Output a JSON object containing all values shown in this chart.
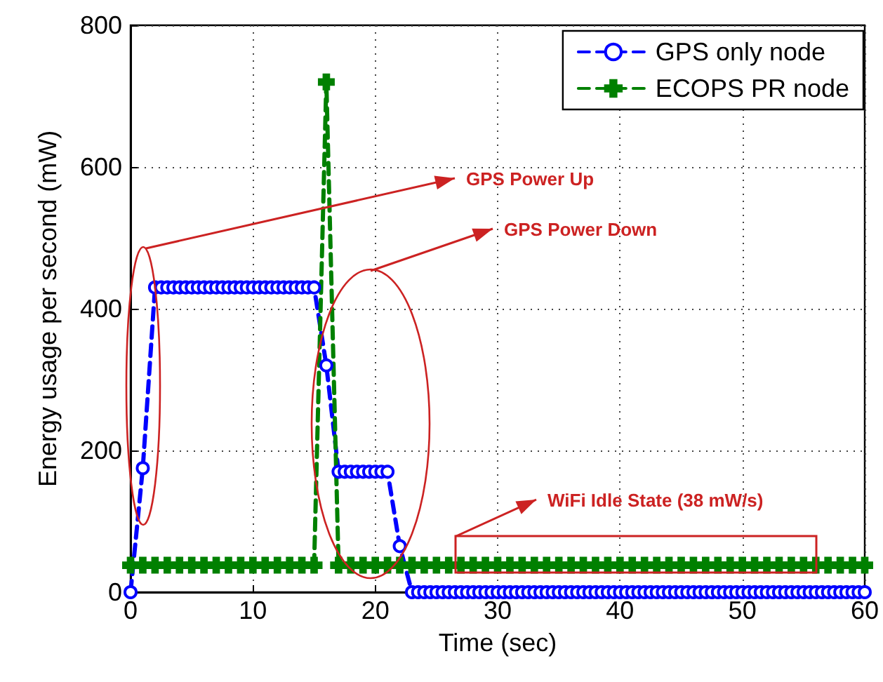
{
  "chart_data": {
    "type": "line",
    "xlabel": "Time (sec)",
    "ylabel": "Energy usage per second (mW)",
    "xlim": [
      0,
      60
    ],
    "xticks": [
      0,
      10,
      20,
      30,
      40,
      50,
      60
    ],
    "ylim": [
      0,
      800
    ],
    "yticks": [
      0,
      200,
      400,
      600,
      800
    ],
    "grid": true,
    "legend": "top right",
    "annotations": [
      "GPS Power Up",
      "GPS Power Down",
      "WiFi Idle State (38 mW/s)"
    ],
    "series": [
      {
        "name": "GPS only node",
        "color": "#0000ff",
        "marker": "circle",
        "line_style": "dashed",
        "x": [
          0,
          1,
          2,
          2.5,
          3,
          3.5,
          4,
          4.5,
          5,
          5.5,
          6,
          6.5,
          7,
          7.5,
          8,
          8.5,
          9,
          9.5,
          10,
          10.5,
          11,
          11.5,
          12,
          12.5,
          13,
          13.5,
          14,
          14.5,
          15,
          16,
          17,
          17.5,
          18,
          18.5,
          19,
          19.5,
          20,
          20.5,
          21,
          22,
          23,
          23.5,
          24,
          24.5,
          25,
          25.5,
          26,
          26.5,
          27,
          27.5,
          28,
          28.5,
          29,
          29.5,
          30,
          30.5,
          31,
          31.5,
          32,
          32.5,
          33,
          33.5,
          34,
          34.5,
          35,
          35.5,
          36,
          36.5,
          37,
          37.5,
          38,
          38.5,
          39,
          39.5,
          40,
          40.5,
          41,
          41.5,
          42,
          42.5,
          43,
          43.5,
          44,
          44.5,
          45,
          45.5,
          46,
          46.5,
          47,
          47.5,
          48,
          48.5,
          49,
          49.5,
          50,
          50.5,
          51,
          51.5,
          52,
          52.5,
          53,
          53.5,
          54,
          54.5,
          55,
          55.5,
          56,
          56.5,
          57,
          57.5,
          58,
          58.5,
          59,
          59.5,
          60
        ],
        "values": [
          0,
          175,
          430,
          430,
          430,
          430,
          430,
          430,
          430,
          430,
          430,
          430,
          430,
          430,
          430,
          430,
          430,
          430,
          430,
          430,
          430,
          430,
          430,
          430,
          430,
          430,
          430,
          430,
          430,
          320,
          170,
          170,
          170,
          170,
          170,
          170,
          170,
          170,
          170,
          65,
          0,
          0,
          0,
          0,
          0,
          0,
          0,
          0,
          0,
          0,
          0,
          0,
          0,
          0,
          0,
          0,
          0,
          0,
          0,
          0,
          0,
          0,
          0,
          0,
          0,
          0,
          0,
          0,
          0,
          0,
          0,
          0,
          0,
          0,
          0,
          0,
          0,
          0,
          0,
          0,
          0,
          0,
          0,
          0,
          0,
          0,
          0,
          0,
          0,
          0,
          0,
          0,
          0,
          0,
          0,
          0,
          0,
          0,
          0,
          0,
          0,
          0,
          0,
          0,
          0,
          0,
          0,
          0,
          0,
          0,
          0,
          0,
          0,
          0,
          0
        ]
      },
      {
        "name": "ECOPS PR node",
        "color": "#008000",
        "marker": "cross",
        "line_style": "dashed",
        "x": [
          0,
          1,
          2,
          3,
          4,
          5,
          6,
          7,
          8,
          9,
          10,
          11,
          12,
          13,
          14,
          15,
          16,
          17,
          18,
          19,
          20,
          21,
          22,
          23,
          24,
          25,
          26,
          27,
          28,
          29,
          30,
          31,
          32,
          33,
          34,
          35,
          36,
          37,
          38,
          39,
          40,
          41,
          42,
          43,
          44,
          45,
          46,
          47,
          48,
          49,
          50,
          51,
          52,
          53,
          54,
          55,
          56,
          57,
          58,
          59,
          60
        ],
        "values": [
          38,
          38,
          38,
          38,
          38,
          38,
          38,
          38,
          38,
          38,
          38,
          38,
          38,
          38,
          38,
          38,
          720,
          38,
          38,
          38,
          38,
          38,
          38,
          38,
          38,
          38,
          38,
          38,
          38,
          38,
          38,
          38,
          38,
          38,
          38,
          38,
          38,
          38,
          38,
          38,
          38,
          38,
          38,
          38,
          38,
          38,
          38,
          38,
          38,
          38,
          38,
          38,
          38,
          38,
          38,
          38,
          38,
          38,
          38,
          38,
          38
        ]
      }
    ]
  }
}
